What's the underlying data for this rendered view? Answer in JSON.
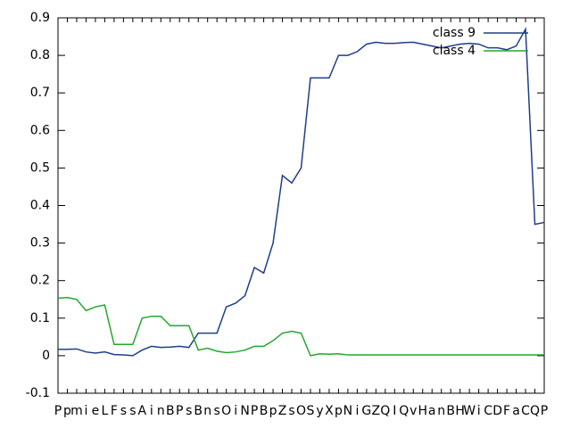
{
  "chart_data": {
    "type": "line",
    "categories": [
      "P",
      "p",
      "m",
      "i",
      "e",
      "L",
      "F",
      "s",
      "s",
      "A",
      "i",
      "n",
      "B",
      "P",
      "s",
      "B",
      "n",
      "s",
      "O",
      "i",
      "N",
      "P",
      "B",
      "p",
      "Z",
      "s",
      "O",
      "S",
      "y",
      "X",
      "p",
      "N",
      "i",
      "G",
      "Z",
      "Q",
      "I",
      "Q",
      "v",
      "H",
      "a",
      "n",
      "B",
      "H",
      "W",
      "i",
      "C",
      "D",
      "F",
      "a",
      "C",
      "Q",
      "P"
    ],
    "series": [
      {
        "name": "class 9",
        "color": "#1f3d8c",
        "values": [
          0.017,
          0.017,
          0.018,
          0.01,
          0.007,
          0.01,
          0.003,
          0.002,
          0.0,
          0.015,
          0.025,
          0.022,
          0.023,
          0.025,
          0.022,
          0.06,
          0.06,
          0.06,
          0.13,
          0.14,
          0.16,
          0.235,
          0.22,
          0.3,
          0.48,
          0.46,
          0.5,
          0.74,
          0.74,
          0.74,
          0.8,
          0.8,
          0.81,
          0.83,
          0.835,
          0.832,
          0.832,
          0.834,
          0.835,
          0.83,
          0.825,
          0.82,
          0.825,
          0.83,
          0.832,
          0.83,
          0.82,
          0.82,
          0.815,
          0.825,
          0.87,
          0.35,
          0.355
        ]
      },
      {
        "name": "class 4",
        "color": "#22a82e",
        "values": [
          0.153,
          0.155,
          0.15,
          0.12,
          0.13,
          0.135,
          0.03,
          0.03,
          0.03,
          0.1,
          0.105,
          0.105,
          0.08,
          0.08,
          0.08,
          0.015,
          0.02,
          0.012,
          0.008,
          0.01,
          0.015,
          0.025,
          0.025,
          0.04,
          0.06,
          0.065,
          0.06,
          0.0,
          0.005,
          0.004,
          0.005,
          0.002,
          0.002,
          0.002,
          0.002,
          0.002,
          0.002,
          0.002,
          0.002,
          0.002,
          0.002,
          0.002,
          0.002,
          0.002,
          0.002,
          0.002,
          0.002,
          0.002,
          0.002,
          0.002,
          0.002,
          0.002,
          0.002
        ]
      }
    ],
    "ylim": [
      -0.1,
      0.9
    ],
    "yticks": [
      -0.1,
      0,
      0.1,
      0.2,
      0.3,
      0.4,
      0.5,
      0.6,
      0.7,
      0.8,
      0.9
    ],
    "legend": "top-right"
  }
}
